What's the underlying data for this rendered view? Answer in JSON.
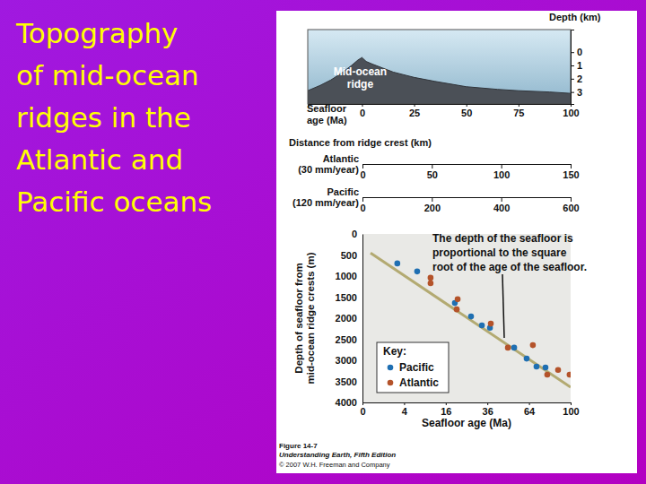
{
  "title": [
    "Topography",
    "of mid-ocean",
    "ridges in the",
    "Atlantic and",
    "Pacific oceans"
  ],
  "chart_data": [
    {
      "type": "area",
      "ylabel": "Depth (km)",
      "xlabel": [
        "Seafloor",
        "age (Ma)"
      ],
      "annotation": [
        "Mid-ocean",
        "ridge"
      ],
      "x": [
        -26,
        -20,
        -15,
        -10,
        -5,
        -2,
        0,
        2,
        5,
        10,
        15,
        20,
        25,
        35,
        50,
        65,
        75,
        90,
        100
      ],
      "values": [
        2.9,
        2.5,
        2.1,
        1.6,
        1.0,
        0.6,
        0.4,
        0.7,
        0.9,
        1.2,
        1.5,
        1.7,
        1.9,
        2.2,
        2.6,
        2.8,
        2.9,
        3.0,
        3.1
      ],
      "xlim": [
        -26,
        100
      ],
      "xticks": [
        0,
        25,
        50,
        75,
        100
      ],
      "ylim": [
        -1.7,
        3.9
      ],
      "yticks": [
        0,
        1,
        2,
        3
      ]
    },
    {
      "type": "scatter",
      "xlabel": "Seafloor age (Ma)",
      "ylabel": [
        "Depth of seafloor from",
        "mid-ocean ridge crests (m)"
      ],
      "annotation": [
        "The depth of the seafloor is",
        "proportional to the square",
        "root of the age of the seafloor."
      ],
      "legend_title": "Key:",
      "legend": "lower left",
      "series": [
        {
          "name": "Pacific",
          "color": "#1f6fb2",
          "x": [
            2.8,
            6.9,
            19.7,
            27.2,
            32.9,
            37.5,
            53.1,
            62.2,
            69.9,
            77.3
          ],
          "values": [
            700,
            890,
            1640,
            1960,
            2170,
            2230,
            2700,
            2960,
            3150,
            3170
          ]
        },
        {
          "name": "Atlantic",
          "color": "#b4532a",
          "x": [
            10.7,
            10.7,
            20.5,
            20.9,
            38,
            48.8,
            67,
            78.8,
            88.3,
            99
          ],
          "values": [
            1040,
            1170,
            1790,
            1550,
            2130,
            2700,
            2640,
            3340,
            3230,
            3340
          ]
        }
      ],
      "trend_line": {
        "color": "#b3aa72",
        "x": [
          0.15,
          100
        ],
        "values": [
          450,
          3640
        ]
      },
      "xlim": [
        0,
        100
      ],
      "xticks": [
        0,
        4,
        16,
        36,
        64,
        100
      ],
      "ylim": [
        0,
        4000
      ],
      "yticks": [
        0,
        500,
        1000,
        1500,
        2000,
        2500,
        3000,
        3500,
        4000
      ]
    }
  ],
  "distance_axes": {
    "title": "Distance from ridge crest (km)",
    "axes": [
      {
        "name": "Atlantic",
        "rate": "(30 mm/year)",
        "xlim": [
          0,
          150
        ],
        "xticks": [
          0,
          50,
          100,
          150
        ]
      },
      {
        "name": "Pacific",
        "rate": "(120 mm/year)",
        "xlim": [
          0,
          600
        ],
        "xticks": [
          0,
          200,
          400,
          600
        ]
      }
    ]
  },
  "caption": [
    "Figure 14-7",
    "Understanding Earth, Fifth Edition",
    "© 2007 W.H. Freeman and Company"
  ]
}
